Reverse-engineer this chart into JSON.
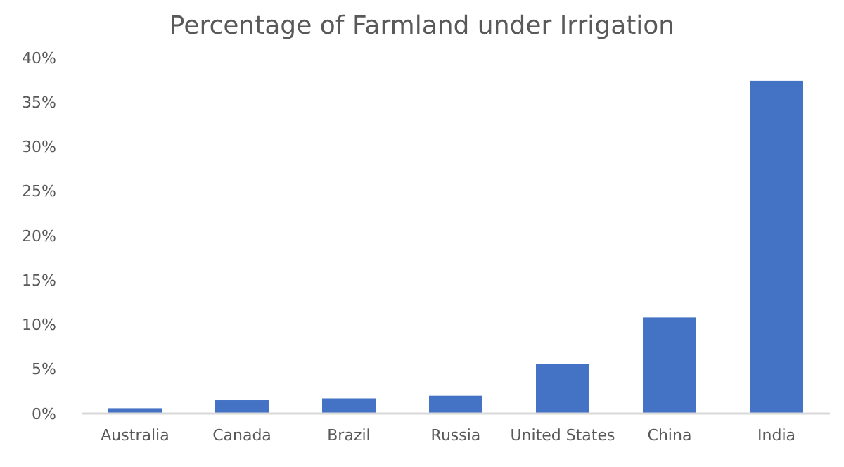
{
  "chart_data": {
    "type": "bar",
    "title": "Percentage of Farmland under Irrigation",
    "categories": [
      "Australia",
      "Canada",
      "Brazil",
      "Russia",
      "United States",
      "China",
      "India"
    ],
    "values": [
      0.6,
      1.5,
      1.7,
      2.0,
      5.6,
      10.8,
      37.4
    ],
    "color": "#4472c4",
    "ylim": [
      0,
      40
    ],
    "yticks": [
      {
        "value": 0,
        "label": "0%"
      },
      {
        "value": 5,
        "label": "5%"
      },
      {
        "value": 10,
        "label": "10%"
      },
      {
        "value": 15,
        "label": "15%"
      },
      {
        "value": 20,
        "label": "20%"
      },
      {
        "value": 25,
        "label": "25%"
      },
      {
        "value": 30,
        "label": "30%"
      },
      {
        "value": 35,
        "label": "35%"
      },
      {
        "value": 40,
        "label": "40%"
      }
    ],
    "grid": false
  }
}
